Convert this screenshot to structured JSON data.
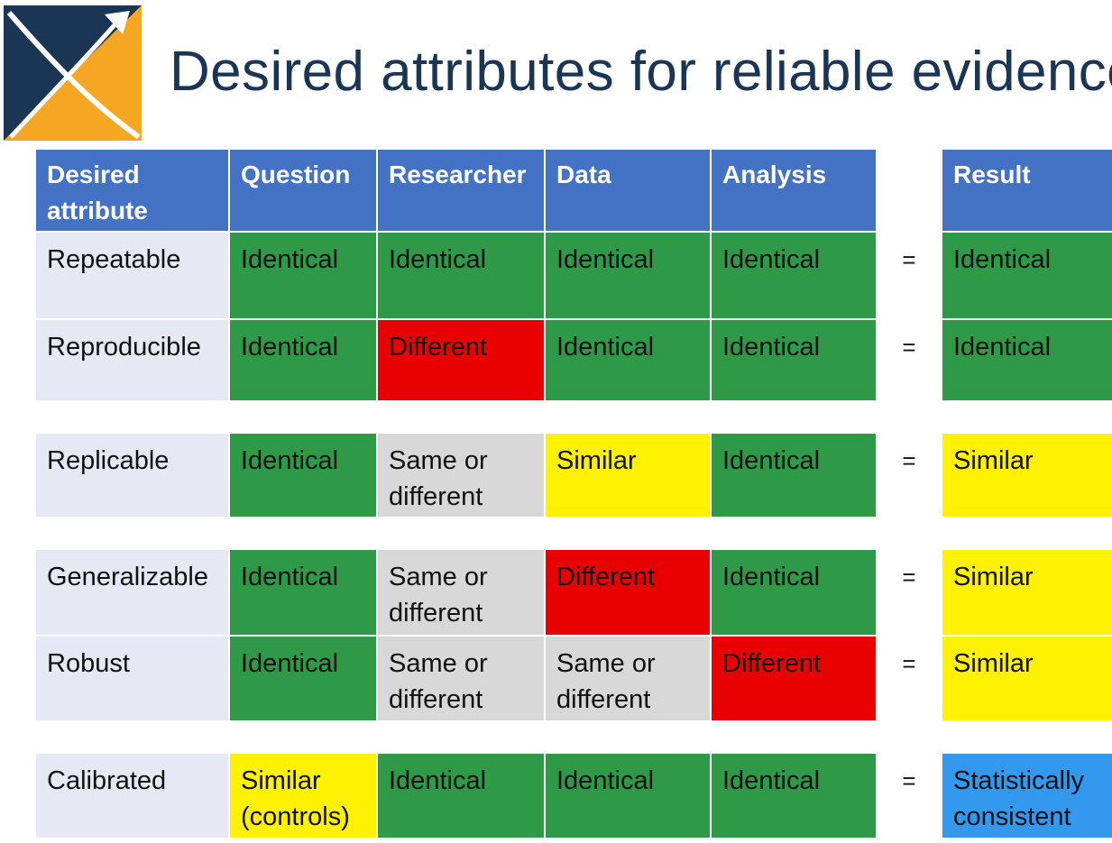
{
  "title": "Desired attributes for reliable evidence",
  "colors": {
    "header": "#4472c4",
    "attribute_bg": "#e6e9f3",
    "identical_green": "#2e9a48",
    "different_red": "#e90000",
    "similar_yellow": "#fff200",
    "same_or_different_gray": "#d8d8d8",
    "statistically_consistent_blue": "#3399ee",
    "title_text": "#1b3555"
  },
  "table": {
    "headers": {
      "attribute": "Desired attribute",
      "question": "Question",
      "researcher": "Researcher",
      "data": "Data",
      "analysis": "Analysis",
      "result": "Result"
    },
    "equals": "=",
    "rows": [
      {
        "attribute": "Repeatable",
        "question": "Identical",
        "researcher": "Identical",
        "data": "Identical",
        "analysis": "Identical",
        "result": "Identical"
      },
      {
        "attribute": "Reproducible",
        "question": "Identical",
        "researcher": "Different",
        "data": "Identical",
        "analysis": "Identical",
        "result": "Identical"
      },
      {
        "attribute": "Replicable",
        "question": "Identical",
        "researcher": "Same or different",
        "data": "Similar",
        "analysis": "Identical",
        "result": "Similar"
      },
      {
        "attribute": "Generalizable",
        "question": "Identical",
        "researcher": "Same or different",
        "data": "Different",
        "analysis": "Identical",
        "result": "Similar"
      },
      {
        "attribute": "Robust",
        "question": "Identical",
        "researcher": "Same or different",
        "data": "Same or different",
        "analysis": "Different",
        "result": "Similar"
      },
      {
        "attribute": "Calibrated",
        "question": "Similar (controls)",
        "researcher": "Identical",
        "data": "Identical",
        "analysis": "Identical",
        "result": "Statistically consistent"
      }
    ]
  }
}
